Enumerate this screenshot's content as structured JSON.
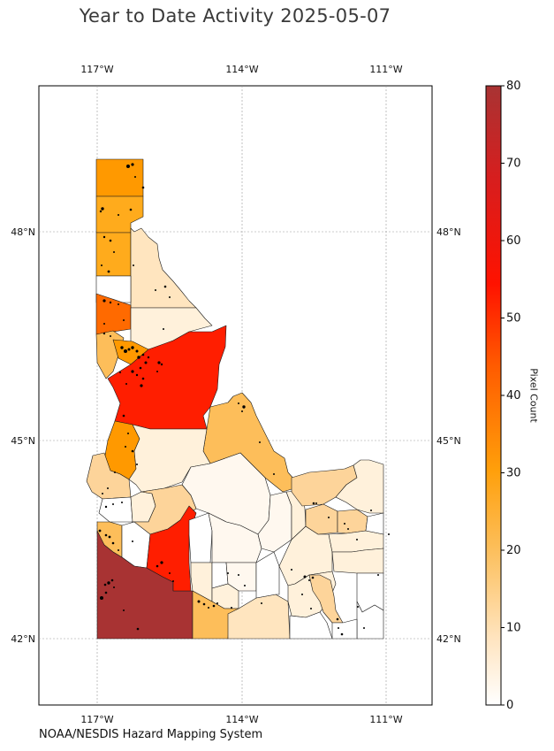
{
  "title": "Year to Date Activity 2025-05-07",
  "footer": "NOAA/NESDIS Hazard Mapping System",
  "colorbar": {
    "label": "Pixel Count",
    "min": 0,
    "max": 80,
    "ticks": [
      "0",
      "10",
      "20",
      "30",
      "40",
      "50",
      "60",
      "70",
      "80"
    ],
    "colormap": "YlOrRd-like"
  },
  "map": {
    "region": "Idaho",
    "lon_labels": [
      "117°W",
      "114°W",
      "111°W"
    ],
    "lat_labels": [
      "48°N",
      "45°N",
      "42°N"
    ],
    "gridlines": true
  },
  "colors": {
    "c80": "#a83333",
    "c52": "#ff1e00",
    "c48": "#ff2a00",
    "c38": "#ff6a00",
    "c28": "#ff9900",
    "c20": "#ffab1c",
    "c15": "#fdbe5a",
    "c10": "#fdd49a",
    "c7": "#ffe5bf",
    "c4": "#fff1db",
    "c2": "#fff8ef",
    "c0": "#ffffff"
  }
}
